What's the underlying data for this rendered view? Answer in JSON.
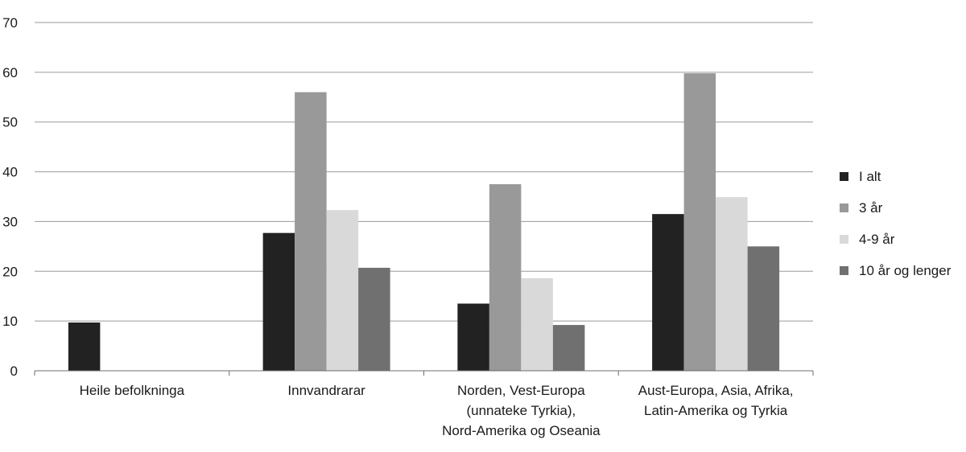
{
  "chart_data": {
    "type": "bar",
    "title": "",
    "xlabel": "",
    "ylabel": "",
    "ylim": [
      0,
      70
    ],
    "yticks": [
      "0",
      "10",
      "20",
      "30",
      "40",
      "50",
      "60",
      "70"
    ],
    "grid": true,
    "legend_position": "right",
    "categories": [
      [
        "Heile befolkninga"
      ],
      [
        "Innvandrarar"
      ],
      [
        "Norden, Vest-Europa",
        "(unnateke Tyrkia),",
        "Nord-Amerika og Oseania"
      ],
      [
        "Aust-Europa, Asia, Afrika,",
        "Latin-Amerika og Tyrkia"
      ]
    ],
    "series": [
      {
        "name": "I alt",
        "color": "#222222",
        "values": [
          9.7,
          27.7,
          13.5,
          31.5
        ]
      },
      {
        "name": "3 år",
        "color": "#999999",
        "values": [
          null,
          56,
          37.5,
          59.8
        ]
      },
      {
        "name": "4-9 år",
        "color": "#d9d9d9",
        "values": [
          null,
          32.3,
          18.6,
          34.9
        ]
      },
      {
        "name": "10 år og lenger",
        "color": "#707070",
        "values": [
          null,
          20.7,
          9.2,
          25
        ]
      }
    ]
  }
}
